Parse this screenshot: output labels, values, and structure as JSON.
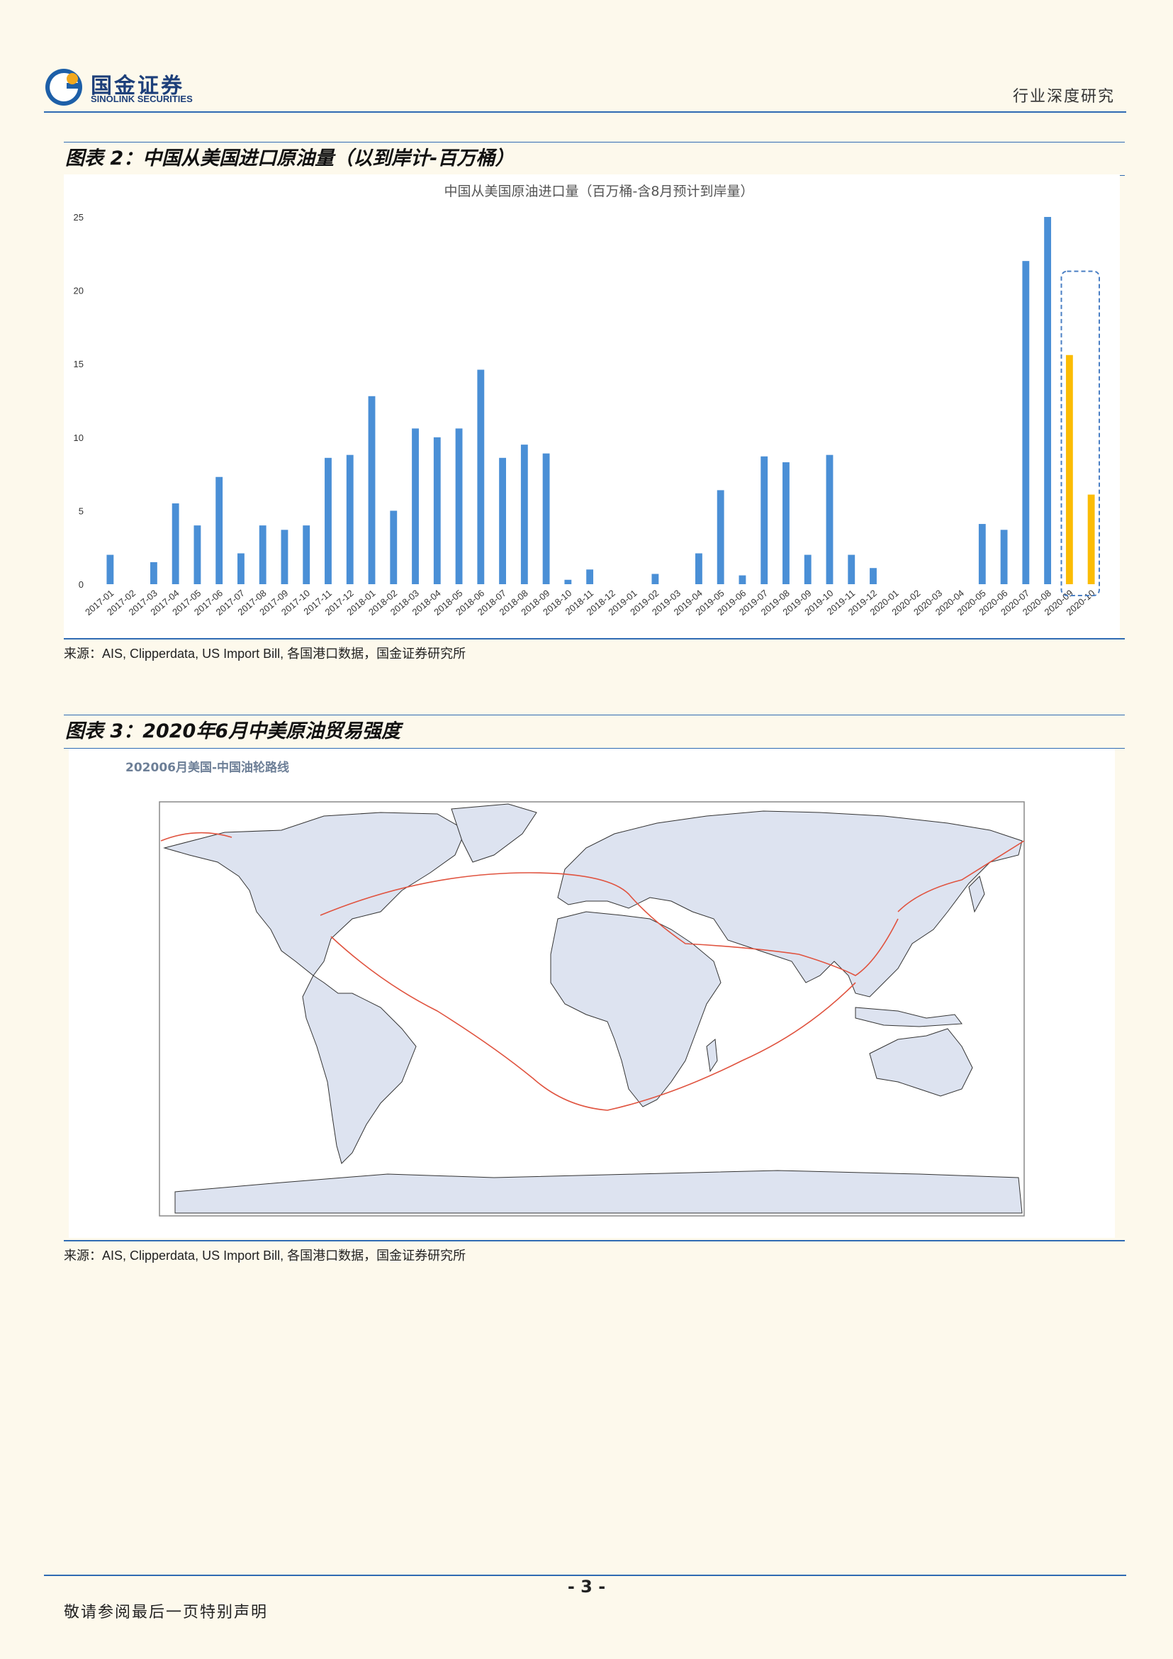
{
  "header": {
    "brand_cn": "国金证券",
    "brand_en": "SINOLINK SECURITIES",
    "section_tag": "行业深度研究"
  },
  "figure2": {
    "caption": "图表 2：中国从美国进口原油量（以到岸计-百万桶）",
    "source": "来源：AIS, Clipperdata, US Import Bill, 各国港口数据，国金证券研究所"
  },
  "chart_data": {
    "type": "bar",
    "title": "中国从美国原油进口量（百万桶-含8月预计到岸量）",
    "xlabel": "",
    "ylabel": "",
    "ylim": [
      0,
      25
    ],
    "yticks": [
      0,
      5,
      10,
      15,
      20,
      25
    ],
    "grid": false,
    "categories": [
      "2017-01",
      "2017-02",
      "2017-03",
      "2017-04",
      "2017-05",
      "2017-06",
      "2017-07",
      "2017-08",
      "2017-09",
      "2017-10",
      "2017-11",
      "2017-12",
      "2018-01",
      "2018-02",
      "2018-03",
      "2018-04",
      "2018-05",
      "2018-06",
      "2018-07",
      "2018-08",
      "2018-09",
      "2018-10",
      "2018-11",
      "2018-12",
      "2019-01",
      "2019-02",
      "2019-03",
      "2019-04",
      "2019-05",
      "2019-06",
      "2019-07",
      "2019-08",
      "2019-09",
      "2019-10",
      "2019-11",
      "2019-12",
      "2020-01",
      "2020-02",
      "2020-03",
      "2020-04",
      "2020-05",
      "2020-06",
      "2020-07",
      "2020-08",
      "2020-09",
      "2020-10"
    ],
    "values": [
      2.0,
      0,
      1.5,
      5.5,
      4.0,
      7.3,
      2.1,
      4.0,
      3.7,
      4.0,
      8.6,
      8.8,
      12.8,
      5.0,
      10.6,
      10.0,
      10.6,
      14.6,
      8.6,
      9.5,
      8.9,
      0.3,
      1.0,
      0,
      0,
      0.7,
      0,
      2.1,
      6.4,
      0.6,
      8.7,
      8.3,
      2.0,
      8.8,
      2.0,
      1.1,
      0,
      0,
      0,
      0,
      4.1,
      3.7,
      22.0,
      25.0,
      15.6,
      6.1
    ],
    "colors": {
      "actual": "#4a8fd6",
      "projected": "#fbbc05"
    },
    "projected_categories": [
      "2020-09",
      "2020-10"
    ]
  },
  "figure3": {
    "caption": "图表 3：2020年6月中美原油贸易强度",
    "map_title": "202006月美国-中国油轮路线",
    "source": "来源：AIS, Clipperdata, US Import Bill, 各国港口数据，国金证券研究所"
  },
  "footer": {
    "page_number": "- 3 -",
    "note": "敬请参阅最后一页特别声明"
  }
}
